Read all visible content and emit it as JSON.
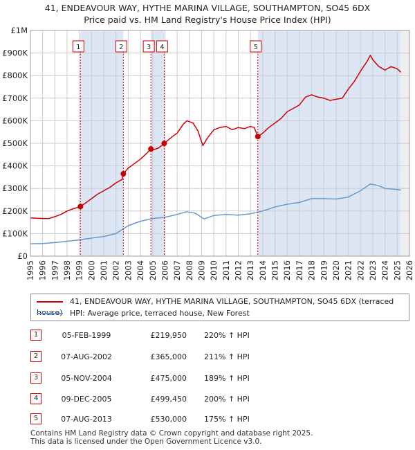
{
  "title": {
    "line1": "41, ENDEAVOUR WAY, HYTHE MARINA VILLAGE, SOUTHAMPTON, SO45 6DX",
    "line2": "Price paid vs. HM Land Registry's House Price Index (HPI)"
  },
  "colors": {
    "price": "#cc0000",
    "hpi": "#6699cc",
    "shade": "#dde6f5",
    "grid": "#cccccc"
  },
  "chart_data": {
    "type": "line",
    "xlim": [
      1995,
      2026
    ],
    "ylim": [
      0,
      1000000
    ],
    "yticks": [
      0,
      100000,
      200000,
      300000,
      400000,
      500000,
      600000,
      700000,
      800000,
      900000,
      1000000
    ],
    "ytick_labels": [
      "£0",
      "£100K",
      "£200K",
      "£300K",
      "£400K",
      "£500K",
      "£600K",
      "£700K",
      "£800K",
      "£900K",
      "£1M"
    ],
    "xticks": [
      1995,
      1996,
      1997,
      1998,
      1999,
      2000,
      2001,
      2002,
      2003,
      2004,
      2005,
      2006,
      2007,
      2008,
      2009,
      2010,
      2011,
      2012,
      2013,
      2014,
      2015,
      2016,
      2017,
      2018,
      2019,
      2020,
      2021,
      2022,
      2023,
      2024,
      2025,
      2026
    ],
    "xtick_labels": [
      "1995",
      "1996",
      "1997",
      "1998",
      "1999",
      "2000",
      "2001",
      "2002",
      "2003",
      "2004",
      "2005",
      "2006",
      "2007",
      "2008",
      "2009",
      "2010",
      "2011",
      "2012",
      "2013",
      "2014",
      "2015",
      "2016",
      "2017",
      "2018",
      "2019",
      "2020",
      "2021",
      "2022",
      "2023",
      "2024",
      "2025",
      "2026"
    ],
    "series": [
      {
        "name": "41, ENDEAVOUR WAY, HYTHE MARINA VILLAGE, SOUTHAMPTON, SO45 6DX (terraced house)",
        "x": [
          1995.0,
          1995.5,
          1996.0,
          1996.5,
          1997.0,
          1997.5,
          1998.0,
          1998.5,
          1999.09,
          1999.5,
          2000.0,
          2000.5,
          2001.0,
          2001.5,
          2002.0,
          2002.5,
          2002.6,
          2003.0,
          2003.5,
          2004.0,
          2004.5,
          2004.85,
          2005.0,
          2005.5,
          2005.94,
          2006.5,
          2007.0,
          2007.5,
          2007.8,
          2008.3,
          2008.7,
          2009.1,
          2009.5,
          2010.0,
          2010.5,
          2011.0,
          2011.5,
          2012.0,
          2012.5,
          2013.0,
          2013.3,
          2013.6,
          2014.0,
          2014.5,
          2015.0,
          2015.5,
          2016.0,
          2016.5,
          2017.0,
          2017.5,
          2018.0,
          2018.5,
          2019.0,
          2019.5,
          2020.0,
          2020.5,
          2021.0,
          2021.5,
          2022.0,
          2022.5,
          2022.8,
          2023.0,
          2023.5,
          2024.0,
          2024.5,
          2025.0,
          2025.3
        ],
        "values": [
          170000,
          168000,
          167000,
          167000,
          175000,
          185000,
          200000,
          210000,
          219950,
          235000,
          255000,
          275000,
          290000,
          305000,
          325000,
          340000,
          365000,
          390000,
          410000,
          430000,
          455000,
          475000,
          470000,
          480000,
          499450,
          525000,
          545000,
          585000,
          600000,
          590000,
          555000,
          490000,
          525000,
          560000,
          570000,
          575000,
          560000,
          570000,
          565000,
          575000,
          570000,
          530000,
          545000,
          570000,
          590000,
          610000,
          640000,
          655000,
          670000,
          705000,
          715000,
          705000,
          700000,
          690000,
          695000,
          700000,
          740000,
          775000,
          820000,
          860000,
          890000,
          870000,
          840000,
          825000,
          840000,
          830000,
          815000
        ]
      },
      {
        "name": "HPI: Average price, terraced house, New Forest",
        "x": [
          1995.0,
          1996.0,
          1997.0,
          1998.0,
          1999.0,
          2000.0,
          2001.0,
          2002.0,
          2003.0,
          2004.0,
          2005.0,
          2006.0,
          2007.0,
          2007.8,
          2008.5,
          2009.2,
          2010.0,
          2011.0,
          2012.0,
          2013.0,
          2014.0,
          2015.0,
          2016.0,
          2017.0,
          2018.0,
          2019.0,
          2020.0,
          2021.0,
          2022.0,
          2022.8,
          2023.5,
          2024.0,
          2025.0,
          2025.3
        ],
        "values": [
          55000,
          56000,
          60000,
          66000,
          72000,
          80000,
          87000,
          100000,
          135000,
          155000,
          167000,
          172000,
          185000,
          197000,
          190000,
          165000,
          180000,
          185000,
          182000,
          188000,
          200000,
          218000,
          230000,
          238000,
          255000,
          255000,
          253000,
          262000,
          290000,
          320000,
          312000,
          300000,
          295000,
          293000
        ]
      }
    ],
    "sales": [
      {
        "label": "1",
        "year": 1999.09,
        "value": 219950
      },
      {
        "label": "2",
        "year": 2002.6,
        "value": 365000
      },
      {
        "label": "3",
        "year": 2004.85,
        "value": 475000
      },
      {
        "label": "4",
        "year": 2005.94,
        "value": 499450
      },
      {
        "label": "5",
        "year": 2013.6,
        "value": 530000
      }
    ]
  },
  "legend": {
    "price_label": "41, ENDEAVOUR WAY, HYTHE MARINA VILLAGE, SOUTHAMPTON, SO45 6DX (terraced house)",
    "hpi_label": "HPI: Average price, terraced house, New Forest"
  },
  "sales_table": [
    {
      "num": "1",
      "date": "05-FEB-1999",
      "price": "£219,950",
      "hpi": "220% ↑ HPI"
    },
    {
      "num": "2",
      "date": "07-AUG-2002",
      "price": "£365,000",
      "hpi": "211% ↑ HPI"
    },
    {
      "num": "3",
      "date": "05-NOV-2004",
      "price": "£475,000",
      "hpi": "189% ↑ HPI"
    },
    {
      "num": "4",
      "date": "09-DEC-2005",
      "price": "£499,450",
      "hpi": "200% ↑ HPI"
    },
    {
      "num": "5",
      "date": "07-AUG-2013",
      "price": "£530,000",
      "hpi": "175% ↑ HPI"
    }
  ],
  "footer": {
    "line1": "Contains HM Land Registry data © Crown copyright and database right 2025.",
    "line2": "This data is licensed under the Open Government Licence v3.0."
  }
}
